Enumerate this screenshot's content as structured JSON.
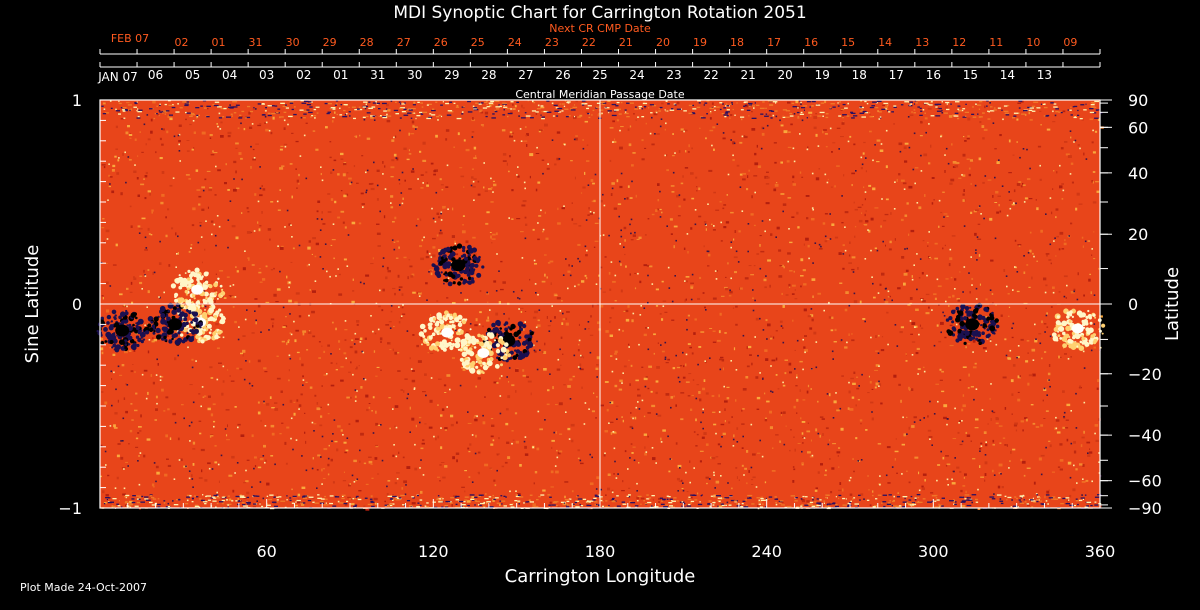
{
  "header": {
    "title": "MDI Synoptic Chart for Carrington Rotation 2051",
    "next_cr_label": "Next CR CMP Date",
    "cmp_label": "Central Meridian Passage Date",
    "next_start_label": "FEB 07",
    "start_label": "JAN 07"
  },
  "footer": {
    "plot_made": "Plot Made 24-Oct-2007"
  },
  "colors": {
    "background": "#000000",
    "map_base": "#e8451a",
    "positive": "#fff6c8",
    "negative": "#1a1050",
    "axis": "#ffffff",
    "next_dates": "#ff5a1f"
  },
  "chart_data": {
    "type": "heatmap",
    "title": "MDI Synoptic Chart for Carrington Rotation 2051",
    "xlabel": "Carrington Longitude",
    "ylabel": "Sine Latitude",
    "ylabel_right": "Latitude",
    "xlim": [
      0,
      360
    ],
    "ylim": [
      -1,
      1
    ],
    "x_ticks": [
      60,
      120,
      180,
      240,
      300,
      360
    ],
    "y_ticks_left": [
      -1,
      0,
      1
    ],
    "y_ticks_left_labels": [
      "−1",
      "0",
      "1"
    ],
    "y_ticks_right": [
      -90,
      -60,
      -40,
      -20,
      0,
      20,
      40,
      60,
      90
    ],
    "y_ticks_right_labels": [
      "−90",
      "−60",
      "−40",
      "−20",
      "0",
      "20",
      "40",
      "60",
      "90"
    ],
    "cmp_dates": [
      "06",
      "05",
      "04",
      "03",
      "02",
      "01",
      "31",
      "30",
      "29",
      "28",
      "27",
      "26",
      "25",
      "24",
      "23",
      "22",
      "21",
      "20",
      "19",
      "18",
      "17",
      "16",
      "15",
      "14",
      "13"
    ],
    "next_cr_dates": [
      "02",
      "01",
      "31",
      "30",
      "29",
      "28",
      "27",
      "26",
      "25",
      "24",
      "23",
      "22",
      "21",
      "20",
      "19",
      "18",
      "17",
      "16",
      "15",
      "14",
      "13",
      "12",
      "11",
      "10",
      "09"
    ],
    "features": [
      {
        "type": "negative",
        "lon": 8,
        "sinlat": -0.13
      },
      {
        "type": "positive",
        "lon": 36,
        "sinlat": -0.09
      },
      {
        "type": "negative",
        "lon": 27,
        "sinlat": -0.1
      },
      {
        "type": "positive",
        "lon": 35,
        "sinlat": 0.07
      },
      {
        "type": "positive",
        "lon": 125,
        "sinlat": -0.14
      },
      {
        "type": "negative",
        "lon": 129,
        "sinlat": 0.19
      },
      {
        "type": "negative",
        "lon": 147,
        "sinlat": -0.18
      },
      {
        "type": "positive",
        "lon": 138,
        "sinlat": -0.24
      },
      {
        "type": "negative",
        "lon": 314,
        "sinlat": -0.1
      },
      {
        "type": "positive",
        "lon": 352,
        "sinlat": -0.12
      }
    ]
  }
}
